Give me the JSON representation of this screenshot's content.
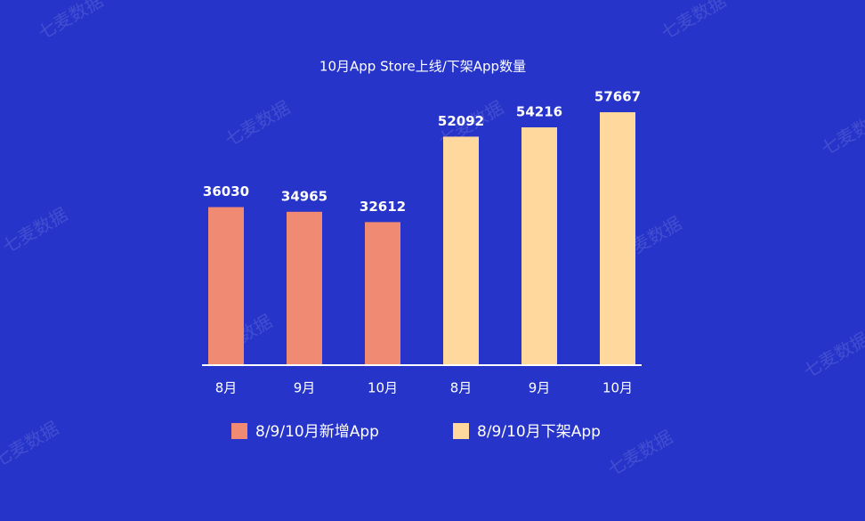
{
  "chart_data": {
    "type": "bar",
    "title": "10月App Store上线/下架App数量",
    "categories": [
      "8月",
      "9月",
      "10月",
      "8月",
      "9月",
      "10月"
    ],
    "series": [
      {
        "name": "8/9/10月新增App",
        "color": "#f08a72",
        "values": [
          36030,
          34965,
          32612,
          null,
          null,
          null
        ]
      },
      {
        "name": "8/9/10月下架App",
        "color": "#fed89c",
        "values": [
          null,
          null,
          null,
          52092,
          54216,
          57667
        ]
      }
    ],
    "ylim": [
      0,
      60000
    ],
    "watermark": "七麦数据"
  }
}
